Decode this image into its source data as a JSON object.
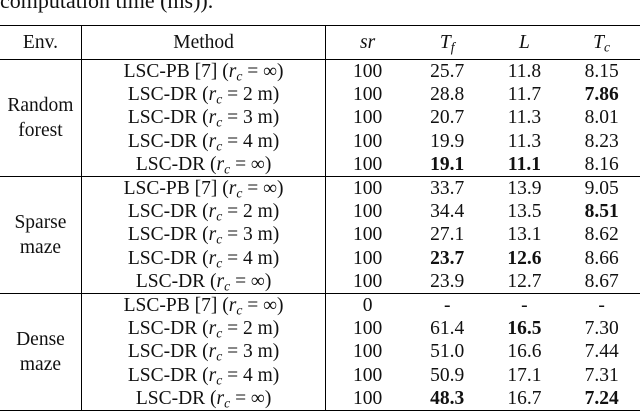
{
  "caption": "computation time (ms)).",
  "headers": {
    "env": "Env.",
    "method": "Method",
    "sr": "sr",
    "tf_main": "T",
    "tf_sub": "f",
    "l": "L",
    "tc_main": "T",
    "tc_sub": "c"
  },
  "groups": [
    {
      "env_line1": "Random",
      "env_line2": "forest",
      "rows": [
        {
          "method_pre": "LSC-PB [7] (",
          "method_var": "r",
          "method_sub": "c",
          "method_post": " = ∞)",
          "sr": "100",
          "tf": "25.7",
          "l": "11.8",
          "tc": "8.15",
          "bold_tf": false,
          "bold_l": false,
          "bold_tc": false
        },
        {
          "method_pre": "LSC-DR (",
          "method_var": "r",
          "method_sub": "c",
          "method_post": " = 2 m)",
          "sr": "100",
          "tf": "28.8",
          "l": "11.7",
          "tc": "7.86",
          "bold_tf": false,
          "bold_l": false,
          "bold_tc": true
        },
        {
          "method_pre": "LSC-DR (",
          "method_var": "r",
          "method_sub": "c",
          "method_post": " = 3 m)",
          "sr": "100",
          "tf": "20.7",
          "l": "11.3",
          "tc": "8.01",
          "bold_tf": false,
          "bold_l": false,
          "bold_tc": false
        },
        {
          "method_pre": "LSC-DR (",
          "method_var": "r",
          "method_sub": "c",
          "method_post": " = 4 m)",
          "sr": "100",
          "tf": "19.9",
          "l": "11.3",
          "tc": "8.23",
          "bold_tf": false,
          "bold_l": false,
          "bold_tc": false
        },
        {
          "method_pre": "LSC-DR (",
          "method_var": "r",
          "method_sub": "c",
          "method_post": " = ∞)",
          "sr": "100",
          "tf": "19.1",
          "l": "11.1",
          "tc": "8.16",
          "bold_tf": true,
          "bold_l": true,
          "bold_tc": false
        }
      ]
    },
    {
      "env_line1": "Sparse",
      "env_line2": "maze",
      "rows": [
        {
          "method_pre": "LSC-PB [7] (",
          "method_var": "r",
          "method_sub": "c",
          "method_post": " = ∞)",
          "sr": "100",
          "tf": "33.7",
          "l": "13.9",
          "tc": "9.05",
          "bold_tf": false,
          "bold_l": false,
          "bold_tc": false
        },
        {
          "method_pre": "LSC-DR (",
          "method_var": "r",
          "method_sub": "c",
          "method_post": " = 2 m)",
          "sr": "100",
          "tf": "34.4",
          "l": "13.5",
          "tc": "8.51",
          "bold_tf": false,
          "bold_l": false,
          "bold_tc": true
        },
        {
          "method_pre": "LSC-DR (",
          "method_var": "r",
          "method_sub": "c",
          "method_post": " = 3 m)",
          "sr": "100",
          "tf": "27.1",
          "l": "13.1",
          "tc": "8.62",
          "bold_tf": false,
          "bold_l": false,
          "bold_tc": false
        },
        {
          "method_pre": "LSC-DR (",
          "method_var": "r",
          "method_sub": "c",
          "method_post": " = 4 m)",
          "sr": "100",
          "tf": "23.7",
          "l": "12.6",
          "tc": "8.66",
          "bold_tf": true,
          "bold_l": true,
          "bold_tc": false
        },
        {
          "method_pre": "LSC-DR (",
          "method_var": "r",
          "method_sub": "c",
          "method_post": " = ∞)",
          "sr": "100",
          "tf": "23.9",
          "l": "12.7",
          "tc": "8.67",
          "bold_tf": false,
          "bold_l": false,
          "bold_tc": false
        }
      ]
    },
    {
      "env_line1": "Dense",
      "env_line2": "maze",
      "rows": [
        {
          "method_pre": "LSC-PB [7] (",
          "method_var": "r",
          "method_sub": "c",
          "method_post": " = ∞)",
          "sr": "0",
          "tf": "-",
          "l": "-",
          "tc": "-",
          "bold_tf": false,
          "bold_l": false,
          "bold_tc": false
        },
        {
          "method_pre": "LSC-DR (",
          "method_var": "r",
          "method_sub": "c",
          "method_post": " = 2 m)",
          "sr": "100",
          "tf": "61.4",
          "l": "16.5",
          "tc": "7.30",
          "bold_tf": false,
          "bold_l": true,
          "bold_tc": false
        },
        {
          "method_pre": "LSC-DR (",
          "method_var": "r",
          "method_sub": "c",
          "method_post": " = 3 m)",
          "sr": "100",
          "tf": "51.0",
          "l": "16.6",
          "tc": "7.44",
          "bold_tf": false,
          "bold_l": false,
          "bold_tc": false
        },
        {
          "method_pre": "LSC-DR (",
          "method_var": "r",
          "method_sub": "c",
          "method_post": " = 4 m)",
          "sr": "100",
          "tf": "50.9",
          "l": "17.1",
          "tc": "7.31",
          "bold_tf": false,
          "bold_l": false,
          "bold_tc": false
        },
        {
          "method_pre": "LSC-DR (",
          "method_var": "r",
          "method_sub": "c",
          "method_post": " = ∞)",
          "sr": "100",
          "tf": "48.3",
          "l": "16.7",
          "tc": "7.24",
          "bold_tf": true,
          "bold_l": false,
          "bold_tc": true
        }
      ]
    }
  ]
}
